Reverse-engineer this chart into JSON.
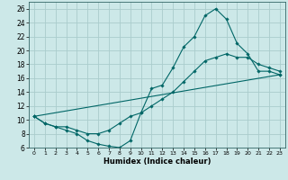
{
  "xlabel": "Humidex (Indice chaleur)",
  "ylabel": "",
  "bg_color": "#cce8e8",
  "grid_color": "#aacccc",
  "line_color": "#006666",
  "xlim": [
    -0.5,
    23.5
  ],
  "ylim": [
    6,
    27
  ],
  "xticks": [
    0,
    1,
    2,
    3,
    4,
    5,
    6,
    7,
    8,
    9,
    10,
    11,
    12,
    13,
    14,
    15,
    16,
    17,
    18,
    19,
    20,
    21,
    22,
    23
  ],
  "yticks": [
    6,
    8,
    10,
    12,
    14,
    16,
    18,
    20,
    22,
    24,
    26
  ],
  "line1_x": [
    0,
    1,
    2,
    3,
    4,
    5,
    6,
    7,
    8,
    9,
    10,
    11,
    12,
    13,
    14,
    15,
    16,
    17,
    18,
    19,
    20,
    21,
    22,
    23
  ],
  "line1_y": [
    10.5,
    9.5,
    9.0,
    8.5,
    8.0,
    7.0,
    6.5,
    6.2,
    6.0,
    7.0,
    11.0,
    14.5,
    15.0,
    17.5,
    20.5,
    22.0,
    25.0,
    26.0,
    24.5,
    21.0,
    19.5,
    17.0,
    17.0,
    16.5
  ],
  "line2_x": [
    0,
    1,
    2,
    3,
    4,
    5,
    6,
    7,
    8,
    9,
    10,
    11,
    12,
    13,
    14,
    15,
    16,
    17,
    18,
    19,
    20,
    21,
    22,
    23
  ],
  "line2_y": [
    10.5,
    9.5,
    9.0,
    9.0,
    8.5,
    8.0,
    8.0,
    8.5,
    9.5,
    10.5,
    11.0,
    12.0,
    13.0,
    14.0,
    15.5,
    17.0,
    18.5,
    19.0,
    19.5,
    19.0,
    19.0,
    18.0,
    17.5,
    17.0
  ],
  "line3_x": [
    0,
    23
  ],
  "line3_y": [
    10.5,
    16.5
  ]
}
